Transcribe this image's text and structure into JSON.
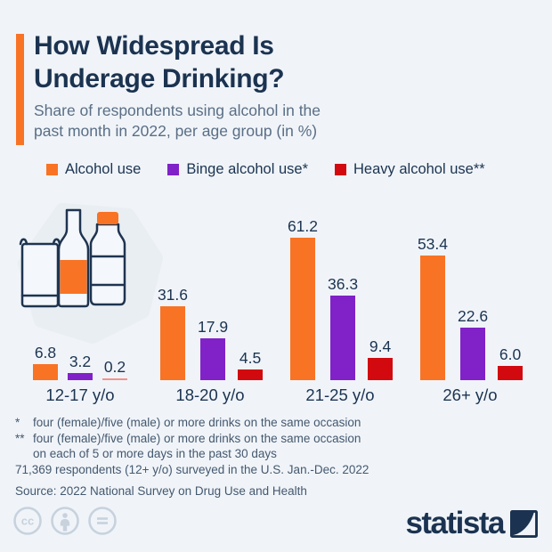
{
  "header": {
    "title": "How Widespread Is\nUnderage Drinking?",
    "subtitle": "Share of respondents using alcohol in the\npast month in 2022, per age group (in %)"
  },
  "legend": [
    {
      "label": "Alcohol use",
      "color": "#F97324"
    },
    {
      "label": "Binge alcohol use*",
      "color": "#8022C8"
    },
    {
      "label": "Heavy alcohol use**",
      "color": "#D20A10"
    }
  ],
  "chart_data": {
    "type": "bar",
    "categories": [
      "12-17 y/o",
      "18-20 y/o",
      "21-25 y/o",
      "26+ y/o"
    ],
    "series": [
      {
        "name": "Alcohol use",
        "color": "#F97324",
        "values": [
          6.8,
          31.6,
          61.2,
          53.4
        ]
      },
      {
        "name": "Binge alcohol use*",
        "color": "#8022C8",
        "values": [
          3.2,
          17.9,
          36.3,
          22.6
        ]
      },
      {
        "name": "Heavy alcohol use**",
        "color": "#D20A10",
        "values": [
          0.2,
          4.5,
          9.4,
          6.0
        ]
      }
    ],
    "ylim": [
      0,
      65
    ],
    "value_labels": true,
    "grid": false,
    "legend_position": "top",
    "small_value_color": "#F2938D",
    "title": "How Widespread Is Underage Drinking?",
    "xlabel": "",
    "ylabel": "Share of respondents using alcohol in the past month in 2022 (%)"
  },
  "footnotes": {
    "star_marker": "*",
    "star_text": "four (female)/five (male) or more drinks on the same occasion",
    "dstar_marker": "**",
    "dstar_text": "four (female)/five (male) or more drinks on the same occasion",
    "dstar_text2": "on each of 5 or more days in the past 30 days",
    "respondents": "71,369 respondents (12+ y/o) surveyed in the U.S. Jan.-Dec. 2022"
  },
  "source": "Source: 2022 National Survey on Drug Use and Health",
  "branding": {
    "logo_text": "statista"
  },
  "colors": {
    "background": "#F0F4F9",
    "title_navy": "#1B3350",
    "subtitle_gray": "#5A6E85",
    "footnote_gray": "#44586E",
    "accent_orange": "#F97324",
    "license_gray": "#C7D2DD"
  }
}
